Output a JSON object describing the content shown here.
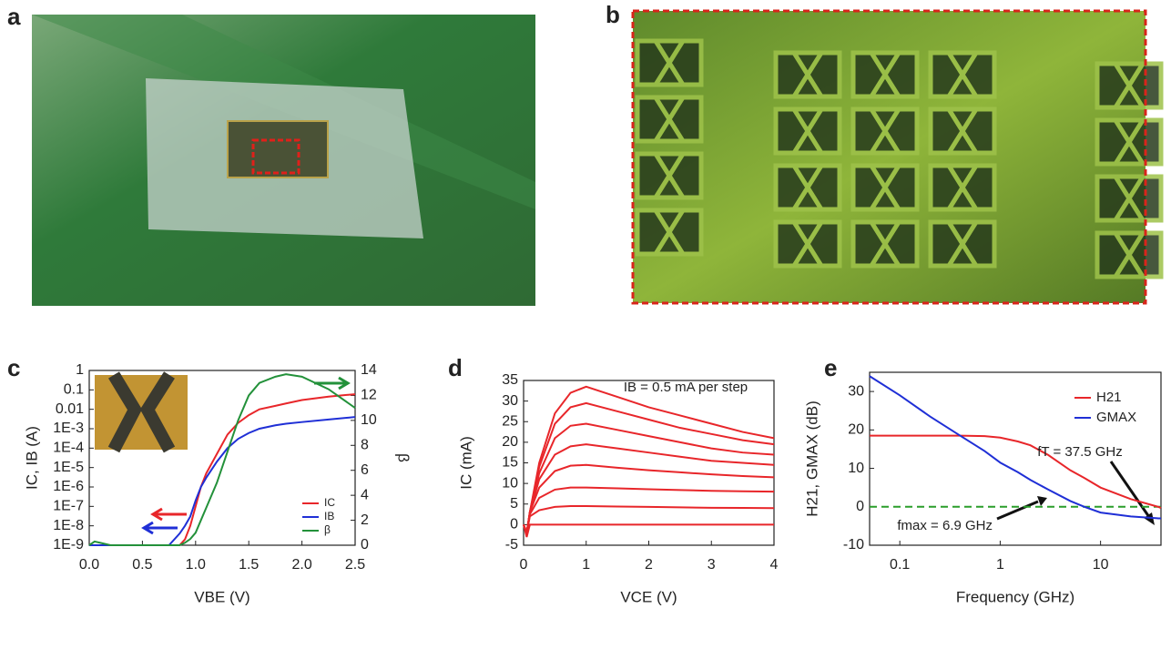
{
  "panel_labels": [
    "a",
    "b",
    "c",
    "d",
    "e"
  ],
  "chart_data": [
    {
      "type": "line",
      "xlabel": "VBE (V)",
      "ylabel": "IC, IB (A)",
      "y2label": "β",
      "x": [
        0,
        0.05,
        0.1,
        0.2,
        0.5,
        0.75,
        0.85,
        0.9,
        0.95,
        1.0,
        1.05,
        1.1,
        1.2,
        1.3,
        1.4,
        1.5,
        1.6,
        1.75,
        1.85,
        2.0,
        2.25,
        2.5
      ],
      "xlim": [
        0,
        2.5
      ],
      "xticks": [
        {
          "value": 0,
          "label": "0.0"
        },
        0.5,
        {
          "value": 1,
          "label": "1.0"
        },
        1.5,
        {
          "value": 2,
          "label": "2.0"
        },
        2.5
      ],
      "ylog": true,
      "ylim": [
        1e-09,
        1
      ],
      "yticks": [
        {
          "value": 1e-09,
          "label": "1E-9"
        },
        {
          "value": 1e-08,
          "label": "1E-8"
        },
        {
          "value": 1e-07,
          "label": "1E-7"
        },
        {
          "value": 1e-06,
          "label": "1E-6"
        },
        {
          "value": 1e-05,
          "label": "1E-5"
        },
        {
          "value": 0.0001,
          "label": "1E-4"
        },
        {
          "value": 0.001,
          "label": "1E-3"
        },
        0.01,
        0.1,
        1
      ],
      "y2lim": [
        0,
        14
      ],
      "y2ticks": [
        0,
        2,
        4,
        6,
        8,
        10,
        12,
        14
      ],
      "legend": "lower right",
      "grid": false,
      "series": [
        {
          "name": "IC",
          "color": "#e8262a",
          "values": [
            1e-09,
            1e-09,
            1e-09,
            1e-09,
            1e-09,
            1e-09,
            1e-09,
            2e-09,
            1e-08,
            1e-07,
            1e-06,
            5e-06,
            5e-05,
            0.0005,
            0.002,
            0.005,
            0.01,
            0.015,
            0.02,
            0.03,
            0.045,
            0.06
          ]
        },
        {
          "name": "IB",
          "color": "#1f2fd6",
          "values": [
            1e-09,
            1e-09,
            1e-09,
            1e-09,
            1e-09,
            1e-09,
            4e-09,
            1e-08,
            3e-08,
            2e-07,
            1e-06,
            3e-06,
            2e-05,
            0.0001,
            0.0003,
            0.0006,
            0.001,
            0.0015,
            0.0018,
            0.0022,
            0.003,
            0.004
          ]
        },
        {
          "name": "β",
          "color": "#23913a",
          "axis": "y2",
          "values": [
            0,
            0.3,
            0.2,
            0,
            0,
            0,
            0,
            0.2,
            0.5,
            1,
            2,
            3,
            5,
            7.5,
            10,
            12,
            13,
            13.5,
            13.7,
            13.5,
            12.5,
            11
          ]
        }
      ]
    },
    {
      "type": "line",
      "xlabel": "VCE (V)",
      "ylabel": "IC (mA)",
      "annotations": [
        "IB = 0.5 mA per step"
      ],
      "x": [
        0,
        0.05,
        0.1,
        0.25,
        0.5,
        0.75,
        1,
        1.5,
        2,
        2.5,
        3,
        3.5,
        4
      ],
      "xlim": [
        0,
        4
      ],
      "xticks": [
        0,
        1,
        2,
        3,
        4
      ],
      "ylim": [
        -5,
        35
      ],
      "yticks": [
        -5,
        0,
        5,
        10,
        15,
        20,
        25,
        30,
        35
      ],
      "grid": false,
      "series": [
        {
          "color": "#e8262a",
          "values": [
            0,
            -2,
            3,
            15,
            27,
            32,
            33.5,
            31,
            28.5,
            26.5,
            24.5,
            22.5,
            21
          ]
        },
        {
          "color": "#e8262a",
          "values": [
            0,
            -2,
            3,
            14,
            24.5,
            28.5,
            29.5,
            27.5,
            25.5,
            23.5,
            22,
            20.5,
            19.5
          ]
        },
        {
          "color": "#e8262a",
          "values": [
            0,
            -2,
            3,
            12.5,
            21,
            24,
            24.5,
            23,
            21.5,
            20,
            18.5,
            17.5,
            17
          ]
        },
        {
          "color": "#e8262a",
          "values": [
            0,
            -2,
            3,
            11,
            17,
            19,
            19.5,
            18.5,
            17.5,
            16.5,
            15.5,
            15,
            14.5
          ]
        },
        {
          "color": "#e8262a",
          "values": [
            0,
            -2,
            3,
            9,
            13,
            14.3,
            14.5,
            13.8,
            13.2,
            12.7,
            12.2,
            11.8,
            11.5
          ]
        },
        {
          "color": "#e8262a",
          "values": [
            0,
            -2,
            2.5,
            6.5,
            8.5,
            9,
            9,
            8.8,
            8.6,
            8.4,
            8.2,
            8.1,
            8
          ]
        },
        {
          "color": "#e8262a",
          "values": [
            0,
            -2,
            2,
            3.5,
            4.3,
            4.5,
            4.5,
            4.4,
            4.3,
            4.2,
            4.1,
            4.05,
            4
          ]
        },
        {
          "color": "#e8262a",
          "values": [
            0,
            -3,
            0,
            0,
            0,
            0,
            0,
            0,
            0,
            0,
            0,
            0,
            0
          ]
        }
      ]
    },
    {
      "type": "line",
      "xlabel": "Frequency (GHz)",
      "ylabel": "H21, GMAX (dB)",
      "annotations": [
        "fT = 37.5 GHz",
        "fmax = 6.9 GHz"
      ],
      "x": [
        0.05,
        0.1,
        0.2,
        0.4,
        0.7,
        1,
        1.5,
        2,
        3,
        5,
        6.9,
        10,
        20,
        37.5,
        40
      ],
      "xlog": true,
      "xlim": [
        0.05,
        40
      ],
      "xticks": [
        0.1,
        1,
        10
      ],
      "ylim": [
        -10,
        35
      ],
      "yticks": [
        -10,
        0,
        10,
        20,
        30
      ],
      "grid": false,
      "legend": "upper right",
      "reference_line": {
        "value": 0,
        "color": "#2a9d2a"
      },
      "series": [
        {
          "name": "H21",
          "color": "#e8262a",
          "values": [
            18.5,
            18.5,
            18.5,
            18.5,
            18.4,
            18,
            17,
            16,
            13.5,
            9.5,
            7.5,
            5,
            2,
            0,
            -0.3
          ]
        },
        {
          "name": "GMAX",
          "color": "#1f2fd6",
          "values": [
            34,
            29,
            23.5,
            18.5,
            14.5,
            11.5,
            9,
            7,
            4.5,
            1.5,
            0,
            -1.5,
            -2.5,
            -3,
            -3
          ]
        }
      ]
    }
  ]
}
